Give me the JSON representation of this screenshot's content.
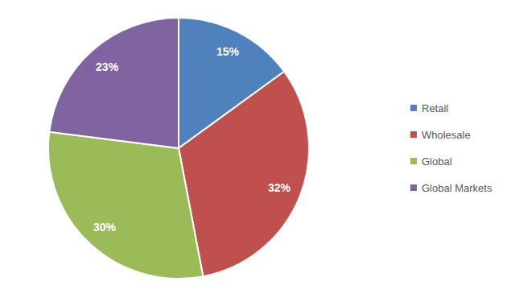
{
  "chart_data": {
    "type": "pie",
    "categories": [
      "Retail",
      "Wholesale",
      "Global",
      "Global Markets"
    ],
    "values": [
      15,
      32,
      30,
      23
    ],
    "value_labels": [
      "15%",
      "32%",
      "30%",
      "23%"
    ],
    "colors": [
      "#4f81bd",
      "#c0504d",
      "#9bbb59",
      "#8064a2"
    ],
    "data_labels": true,
    "legend": "right"
  }
}
